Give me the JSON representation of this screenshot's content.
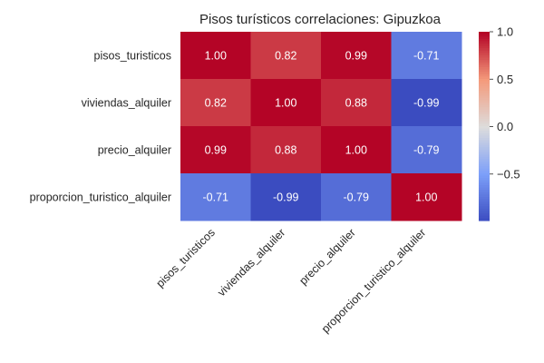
{
  "chart_data": {
    "type": "heatmap",
    "title": "Pisos turísticos correlaciones: Gipuzkoa",
    "row_labels": [
      "pisos_turisticos",
      "viviendas_alquiler",
      "precio_alquiler",
      "proporcion_turistico_alquiler"
    ],
    "col_labels": [
      "pisos_turisticos",
      "viviendas_alquiler",
      "precio_alquiler",
      "proporcion_turistico_alquiler"
    ],
    "values": [
      [
        1.0,
        0.82,
        0.99,
        -0.71
      ],
      [
        0.82,
        1.0,
        0.88,
        -0.99
      ],
      [
        0.99,
        0.88,
        1.0,
        -0.79
      ],
      [
        -0.71,
        -0.99,
        -0.79,
        1.0
      ]
    ],
    "annotations": [
      [
        "1.00",
        "0.82",
        "0.99",
        "-0.71"
      ],
      [
        "0.82",
        "1.00",
        "0.88",
        "-0.99"
      ],
      [
        "0.99",
        "0.88",
        "1.00",
        "-0.79"
      ],
      [
        "-0.71",
        "-0.99",
        "-0.79",
        "1.00"
      ]
    ],
    "colormap": "coolwarm",
    "colorbar": {
      "range": [
        -0.99,
        1.0
      ],
      "ticks": [
        1.0,
        0.5,
        0.0,
        -0.5
      ],
      "tick_labels": [
        "1.0",
        "0.5",
        "0.0",
        "−0.5"
      ]
    },
    "grid": false
  }
}
